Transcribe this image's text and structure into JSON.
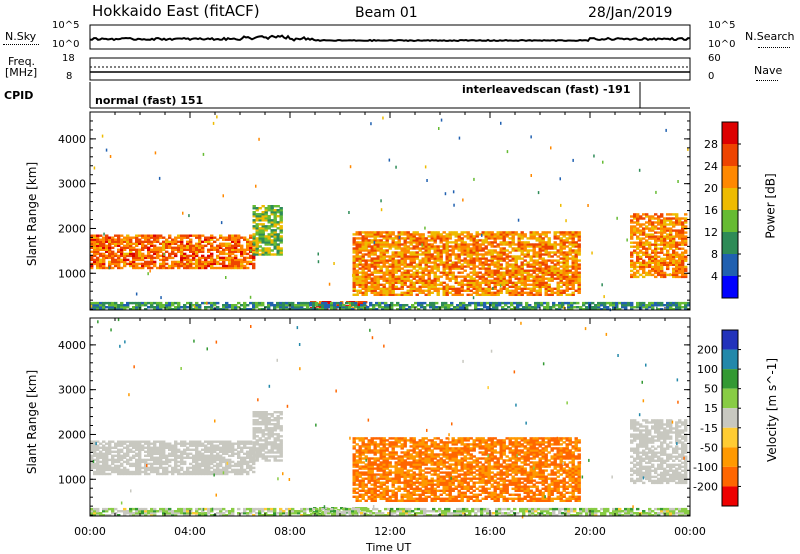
{
  "header": {
    "title": "Hokkaido East (fitACF)",
    "beam": "Beam 01",
    "date": "28/Jan/2019"
  },
  "noise_panel": {
    "left_label": "N.Sky",
    "right_label": "N.Search",
    "left_ticks": [
      "10^5",
      "10^0"
    ],
    "right_ticks": [
      "10^5",
      "10^0"
    ]
  },
  "freq_panel": {
    "left_label_1": "Freq.",
    "left_label_2": "[MHz]",
    "left_ticks": [
      "18",
      "8"
    ],
    "right_label": "Nave",
    "right_ticks": [
      "60",
      "0"
    ]
  },
  "cpid_panel": {
    "label": "CPID",
    "mode_1": "normal (fast) 151",
    "mode_2": "interleavedscan (fast) -191"
  },
  "colors": {
    "power_scale": [
      "#0000ff",
      "#2060b0",
      "#2e8b57",
      "#66bb33",
      "#eebb00",
      "#ff8800",
      "#ee4400",
      "#dd0000"
    ],
    "velocity_scale": [
      "#ee0000",
      "#ff6600",
      "#ff9900",
      "#ffcc33",
      "#c8c8c0",
      "#88cc44",
      "#339933",
      "#2288aa",
      "#2233bb"
    ],
    "ground_scatter": "#c8c8c0"
  },
  "chart_data": [
    {
      "type": "heatmap",
      "name": "power",
      "ylabel": "Slant Range [km]",
      "colorbar_label": "Power [dB]",
      "colorbar_ticks": [
        4,
        8,
        12,
        16,
        20,
        24,
        28
      ],
      "ylim": [
        180,
        4600
      ],
      "yticks": [
        1000,
        2000,
        3000,
        4000
      ],
      "xlim": [
        0,
        24
      ],
      "xtick_labels": [
        "00:00",
        "04:00",
        "08:00",
        "12:00",
        "16:00",
        "20:00",
        "00:00"
      ],
      "xlabel": "Time UT",
      "echo_regions": [
        {
          "t": [
            0.0,
            6.5
          ],
          "range": [
            1100,
            1850
          ],
          "power_db": 24
        },
        {
          "t": [
            6.5,
            7.6
          ],
          "range": [
            1400,
            2500
          ],
          "power_db": 14
        },
        {
          "t": [
            8.8,
            11.0
          ],
          "range": [
            200,
            350
          ],
          "power_db": 26
        },
        {
          "t": [
            10.5,
            19.5
          ],
          "range": [
            500,
            1900
          ],
          "power_db": 22
        },
        {
          "t": [
            21.6,
            23.8
          ],
          "range": [
            900,
            2300
          ],
          "power_db": 22
        },
        {
          "t": [
            0.0,
            24.0
          ],
          "range": [
            180,
            350
          ],
          "power_db": 10
        }
      ]
    },
    {
      "type": "heatmap",
      "name": "velocity",
      "ylabel": "Slant Range [km]",
      "colorbar_label": "Velocity [m s^-1]",
      "colorbar_ticks": [
        200,
        100,
        50,
        15,
        -15,
        -50,
        -100,
        -200
      ],
      "ylim": [
        180,
        4600
      ],
      "yticks": [
        1000,
        2000,
        3000,
        4000
      ],
      "xlim": [
        0,
        24
      ],
      "xtick_labels": [
        "00:00",
        "04:00",
        "08:00",
        "12:00",
        "16:00",
        "20:00",
        "00:00"
      ],
      "xlabel": "Time UT",
      "echo_regions": [
        {
          "t": [
            0.0,
            6.5
          ],
          "range": [
            1100,
            1850
          ],
          "velocity": 0
        },
        {
          "t": [
            6.5,
            7.6
          ],
          "range": [
            1400,
            2500
          ],
          "velocity": 0
        },
        {
          "t": [
            8.8,
            11.0
          ],
          "range": [
            200,
            350
          ],
          "velocity": 30
        },
        {
          "t": [
            10.5,
            19.5
          ],
          "range": [
            500,
            1900
          ],
          "velocity": -80
        },
        {
          "t": [
            21.6,
            23.8
          ],
          "range": [
            900,
            2300
          ],
          "velocity": 0
        },
        {
          "t": [
            0.0,
            24.0
          ],
          "range": [
            180,
            350
          ],
          "velocity": 20
        }
      ]
    }
  ]
}
